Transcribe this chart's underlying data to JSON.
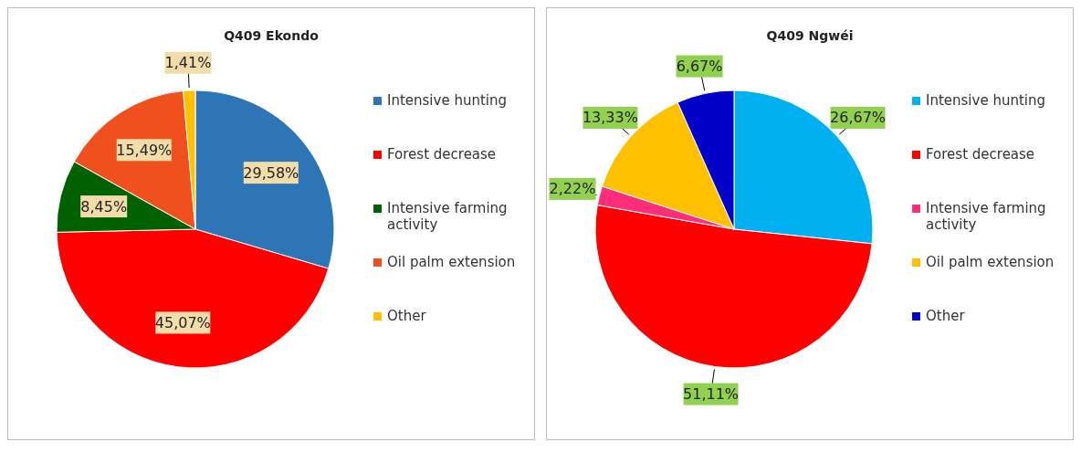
{
  "chart_data": [
    {
      "type": "pie",
      "title": "Q409 Ekondo",
      "categories": [
        "Intensive hunting",
        "Forest decrease",
        "Intensive farming activity",
        "Oil palm extension",
        "Other"
      ],
      "values": [
        29.58,
        45.07,
        8.45,
        15.49,
        1.41
      ],
      "colors": [
        "#2e75b6",
        "#ff0000",
        "#006100",
        "#f0501e",
        "#ffc000"
      ],
      "value_labels": [
        "29,58%",
        "45,07%",
        "8,45%",
        "15,49%",
        "1,41%"
      ],
      "legend": "right"
    },
    {
      "type": "pie",
      "title": "Q409 Ngwéi",
      "categories": [
        "Intensive hunting",
        "Forest decrease",
        "Intensive farming activity",
        "Oil palm extension",
        "Other"
      ],
      "values": [
        26.67,
        51.11,
        2.22,
        13.33,
        6.67
      ],
      "colors": [
        "#00b0f0",
        "#ff0000",
        "#ff2d7a",
        "#ffc000",
        "#0000c8"
      ],
      "value_labels": [
        "26,67%",
        "51,11%",
        "2,22%",
        "13,33%",
        "6,67%"
      ],
      "legend": "right"
    }
  ]
}
